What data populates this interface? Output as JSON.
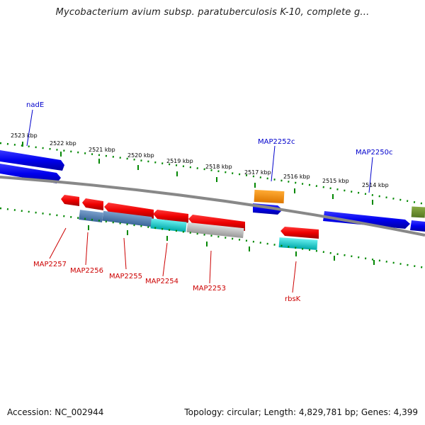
{
  "title": "Mycobacterium avium subsp. paratuberculosis K-10, complete g...",
  "accession": "Accession: NC_002944",
  "summary": "Topology: circular; Length: 4,829,781 bp; Genes: 4,399",
  "kbp_labels": [
    "2523 kbp",
    "2522 kbp",
    "2521 kbp",
    "2520 kbp",
    "2519 kbp",
    "2518 kbp",
    "2517 kbp",
    "2516 kbp",
    "2515 kbp",
    "2514 kbp"
  ],
  "gene_labels_top": [
    "nadE",
    "MAP2252c",
    "MAP2250c"
  ],
  "gene_labels_bottom": [
    "MAP2257",
    "MAP2256",
    "MAP2255",
    "MAP2254",
    "MAP2253",
    "rbsK"
  ],
  "colors": {
    "forward_gene": "#0000ee",
    "reverse_gene": "#ee0000",
    "rna_gene": "#ff8800",
    "tick": "#008800",
    "backbone": "#808080"
  }
}
